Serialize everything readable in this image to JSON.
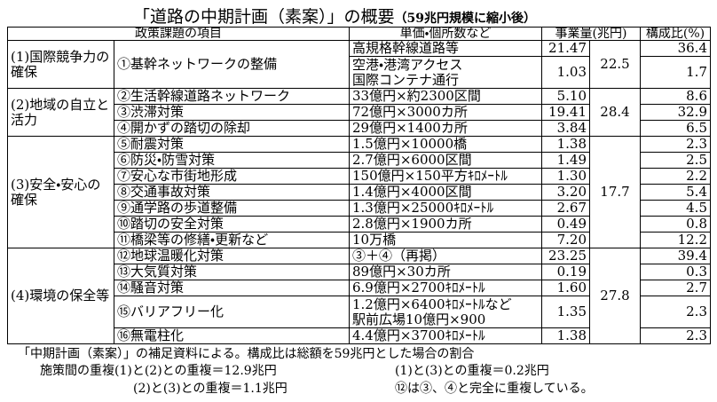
{
  "title": "「道路の中期計画（素案）」の概要",
  "subtitle": "（59兆円規模に縮小後）",
  "table": {
    "headers": [
      "政策課題の項目",
      "単価・個所数など",
      "事業量(兆円)",
      "構成比(%)"
    ],
    "groups": [
      {
        "name": "(1)国際競争力の確保",
        "total": "22.5",
        "items": [
          {
            "name": "①基幹ネットワークの整備",
            "entries": [
              {
                "unit": [
                  "高規格幹線道路等"
                ],
                "amount": "21.47",
                "ratio": "36.4"
              },
              {
                "unit": [
                  "空港・港湾アクセス",
                  "国際コンテナ通行"
                ],
                "amount": "1.03",
                "ratio": "1.7"
              }
            ]
          }
        ]
      },
      {
        "name": "(2)地域の自立と活力",
        "total": "28.4",
        "items": [
          {
            "name": "②生活幹線道路ネットワーク",
            "entries": [
              {
                "unit": [
                  "33億円×約2300区間"
                ],
                "amount": "5.10",
                "ratio": "8.6"
              }
            ]
          },
          {
            "name": "③渋滞対策",
            "entries": [
              {
                "unit": [
                  "72億円×3000カ所"
                ],
                "amount": "19.41",
                "ratio": "32.9"
              }
            ]
          },
          {
            "name": "④開かずの踏切の除却",
            "entries": [
              {
                "unit": [
                  "29億円×1400カ所"
                ],
                "amount": "3.84",
                "ratio": "6.5"
              }
            ]
          }
        ]
      },
      {
        "name": "(3)安全・安心の確保",
        "total": "17.7",
        "items": [
          {
            "name": "⑤耐震対策",
            "entries": [
              {
                "unit": [
                  "1.5億円×10000橋"
                ],
                "amount": "1.38",
                "ratio": "2.3"
              }
            ]
          },
          {
            "name": "⑥防災・防雪対策",
            "entries": [
              {
                "unit": [
                  "2.7億円×6000区間"
                ],
                "amount": "1.49",
                "ratio": "2.5"
              }
            ]
          },
          {
            "name": "⑦安心な市街地形成",
            "entries": [
              {
                "unit": [
                  "150億円×150平方ｷﾛﾒｰﾄﾙ"
                ],
                "amount": "1.30",
                "ratio": "2.2"
              }
            ]
          },
          {
            "name": "⑧交通事故対策",
            "entries": [
              {
                "unit": [
                  "1.4億円×4000区間"
                ],
                "amount": "3.20",
                "ratio": "5.4"
              }
            ]
          },
          {
            "name": "⑨通学路の歩道整備",
            "entries": [
              {
                "unit": [
                  "1.3億円×25000ｷﾛﾒｰﾄﾙ"
                ],
                "amount": "2.67",
                "ratio": "4.5"
              }
            ]
          },
          {
            "name": "⑩踏切の安全対策",
            "entries": [
              {
                "unit": [
                  "2.8億円×1900カ所"
                ],
                "amount": "0.49",
                "ratio": "0.8"
              }
            ]
          },
          {
            "name": "⑪橋梁等の修繕・更新など",
            "entries": [
              {
                "unit": [
                  "10万橋"
                ],
                "amount": "7.20",
                "ratio": "12.2"
              }
            ]
          }
        ]
      },
      {
        "name": "(4)環境の保全等",
        "total": "27.8",
        "items": [
          {
            "name": "⑫地球温暖化対策",
            "entries": [
              {
                "unit": [
                  "③＋④（再掲）"
                ],
                "amount": "23.25",
                "ratio": "39.4"
              }
            ]
          },
          {
            "name": "⑬大気質対策",
            "entries": [
              {
                "unit": [
                  "89億円×30カ所"
                ],
                "amount": "0.19",
                "ratio": "0.3"
              }
            ]
          },
          {
            "name": "⑭騒音対策",
            "entries": [
              {
                "unit": [
                  "6.9億円×2700ｷﾛﾒｰﾄﾙ"
                ],
                "amount": "1.60",
                "ratio": "2.7"
              }
            ]
          },
          {
            "name": "⑮バリアフリー化",
            "entries": [
              {
                "unit": [
                  "1.2億円×6400ｷﾛﾒｰﾄﾙなど",
                  "駅前広場10億円×900"
                ],
                "amount": "1.35",
                "ratio": "2.3"
              }
            ]
          },
          {
            "name": "⑯無電柱化",
            "entries": [
              {
                "unit": [
                  "4.4億円×3700ｷﾛﾒｰﾄﾙ"
                ],
                "amount": "1.38",
                "ratio": "2.3"
              }
            ]
          }
        ]
      }
    ]
  },
  "notes": {
    "source": "「中期計画（素案）」の補足資料による。構成比は総額を59兆円とした場合の割合",
    "overlaps": [
      "施策間の重複(1)と(2)との重複＝12.9兆円",
      "(1)と(3)との重複＝0.2兆円",
      "(2)と(3)との重複＝1.1兆円",
      "⑫は③、④と完全に重複している。"
    ]
  }
}
